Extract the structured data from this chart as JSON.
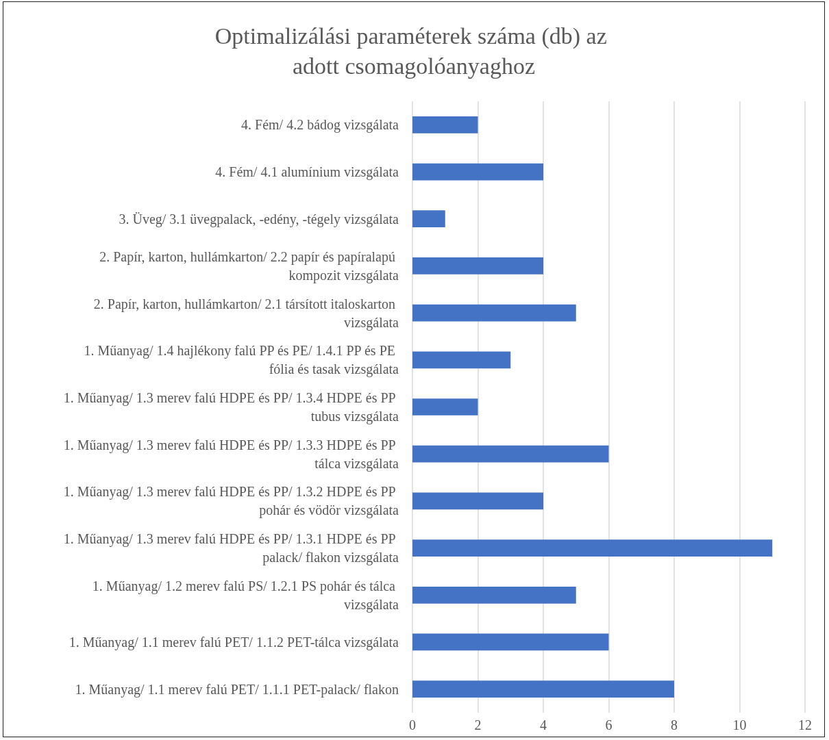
{
  "chart_data": {
    "type": "bar",
    "orientation": "horizontal",
    "title": "Optimalizálási paraméterek száma (db) az adott csomagolóanyaghoz",
    "categories": [
      "4. Fém/ 4.2 bádog vizsgálata",
      "4. Fém/ 4.1 alumínium vizsgálata",
      "3. Üveg/ 3.1 üvegpalack, -edény, -tégely vizsgálata",
      "2. Papír, karton, hullámkarton/ 2.2 papír és papíralapú kompozit vizsgálata",
      "2. Papír, karton, hullámkarton/ 2.1 társított italoskarton vizsgálata",
      "1. Műanyag/ 1.4 hajlékony falú PP és PE/ 1.4.1 PP és PE fólia és tasak vizsgálata",
      "1. Műanyag/ 1.3 merev falú HDPE és PP/ 1.3.4 HDPE és PP tubus vizsgálata",
      "1. Műanyag/ 1.3 merev falú HDPE és PP/ 1.3.3 HDPE és PP tálca vizsgálata",
      "1. Műanyag/ 1.3 merev falú HDPE és PP/ 1.3.2 HDPE és PP pohár és vödör vizsgálata",
      "1. Műanyag/ 1.3 merev falú HDPE és PP/ 1.3.1 HDPE és PP palack/ flakon vizsgálata",
      "1. Műanyag/ 1.2 merev falú PS/ 1.2.1 PS pohár és tálca vizsgálata",
      "1. Műanyag/ 1.1 merev falú PET/ 1.1.2 PET-tálca vizsgálata",
      "1. Műanyag/ 1.1 merev falú PET/ 1.1.1 PET-palack/ flakon"
    ],
    "values": [
      2,
      4,
      1,
      4,
      5,
      3,
      2,
      6,
      4,
      11,
      5,
      6,
      8
    ],
    "color": "#4472c4",
    "xlim": [
      0,
      12
    ],
    "xticks": [
      0,
      2,
      4,
      6,
      8,
      10,
      12
    ],
    "grid": "x"
  }
}
